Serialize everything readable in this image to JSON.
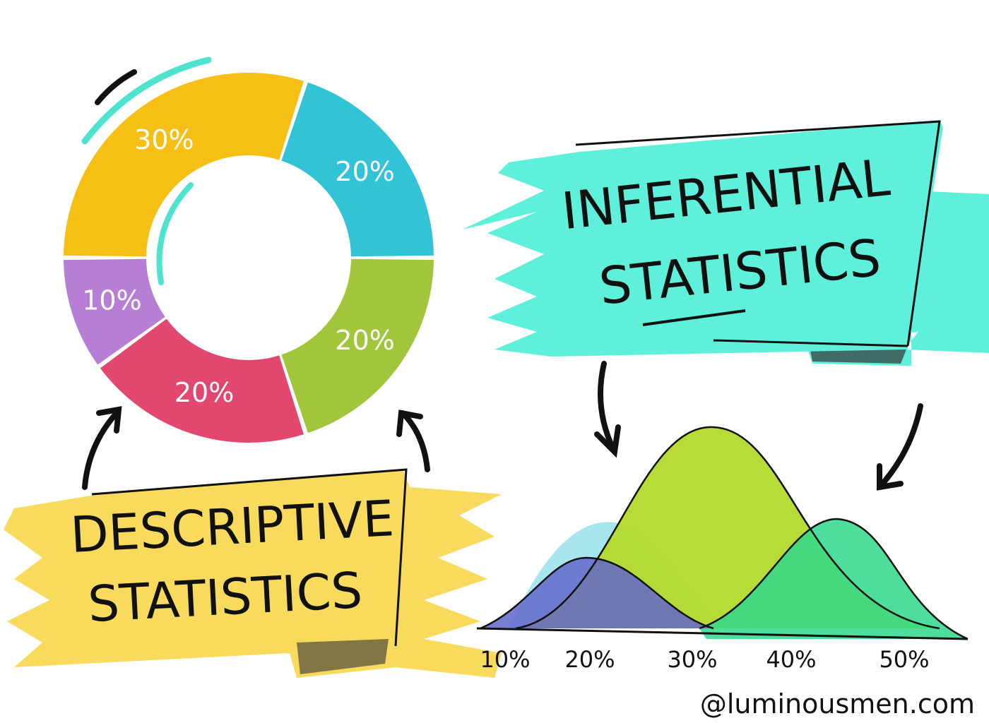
{
  "donut": {
    "values": [
      30,
      20,
      20,
      20,
      10
    ],
    "value_labels": [
      "30%",
      "20%",
      "20%",
      "20%",
      "10%"
    ],
    "colors": [
      "#f5c013",
      "#33c3d6",
      "#a2c63b",
      "#e2476f",
      "#b77ed6"
    ]
  },
  "descriptive_banner": {
    "line1": "DESCRIPTIVE",
    "line2": "STATISTICS"
  },
  "inferential_banner": {
    "line1": "INFERENTIAL",
    "line2": "STATISTICS"
  },
  "distribution": {
    "axis_labels": [
      "10%",
      "20%",
      "30%",
      "40%",
      "50%"
    ]
  },
  "credit": "@luminousmen.com"
}
